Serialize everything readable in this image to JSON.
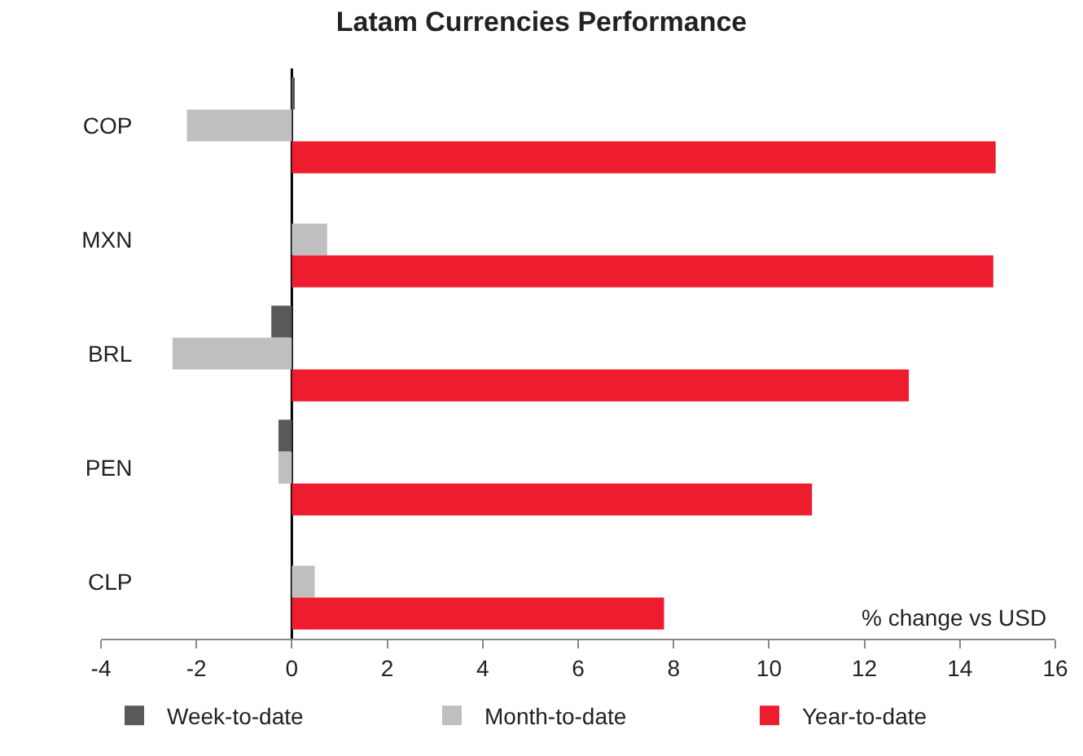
{
  "chart_data": {
    "type": "bar",
    "orientation": "horizontal",
    "title": "Latam Currencies Performance",
    "categories": [
      "COP",
      "MXN",
      "BRL",
      "PEN",
      "CLP"
    ],
    "series": [
      {
        "name": "Week-to-date",
        "color": "#595959",
        "values": [
          0.05,
          0,
          -0.43,
          -0.28,
          0
        ]
      },
      {
        "name": "Month-to-date",
        "color": "#bfbfbf",
        "values": [
          -2.2,
          0.74,
          -2.5,
          -0.28,
          0.48
        ]
      },
      {
        "name": "Year-to-date",
        "color": "#ed1c2e",
        "values": [
          14.75,
          14.7,
          12.93,
          10.9,
          7.8
        ]
      }
    ],
    "xlim": [
      -4,
      16
    ],
    "xticks": [
      -4,
      -2,
      0,
      2,
      4,
      6,
      8,
      10,
      12,
      14,
      16
    ],
    "annotations": [
      "% change vs USD"
    ],
    "ref_lines": [
      {
        "axis": "x",
        "value": 0,
        "color": "#000000"
      }
    ],
    "grid": false,
    "legend": "bottom"
  }
}
